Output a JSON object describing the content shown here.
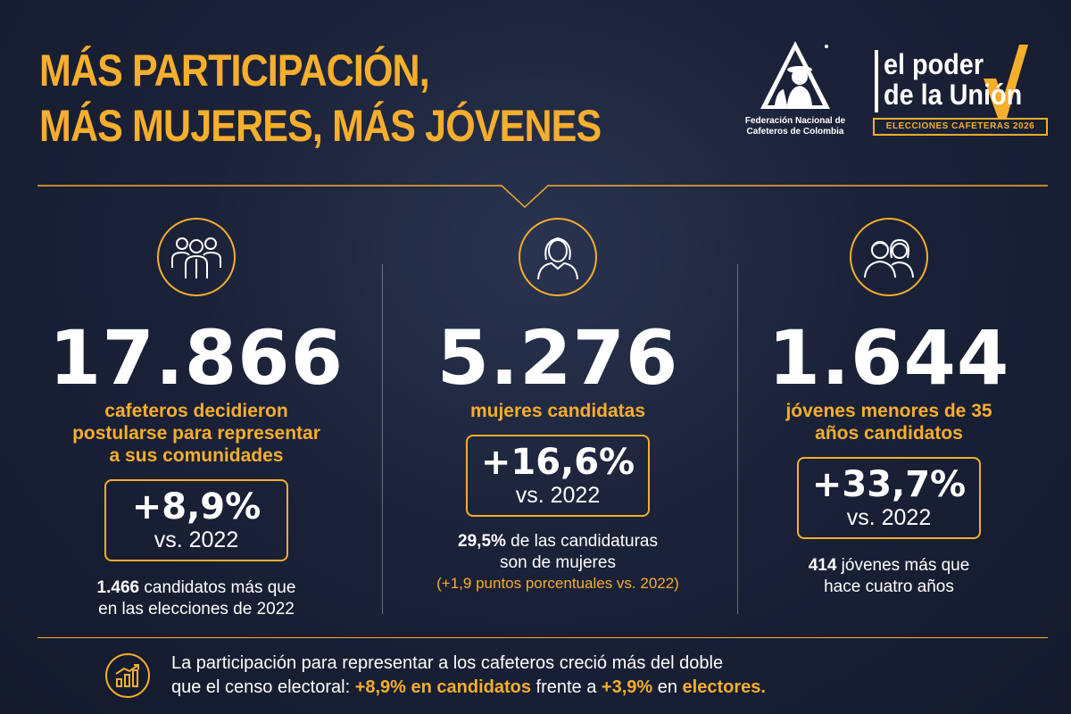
{
  "header": {
    "title_line1": "MÁS PARTICIPACIÓN,",
    "title_line2": "MÁS MUJERES, MÁS JÓVENES",
    "fnc_line1": "Federación Nacional de",
    "fnc_line2": "Cafeteros de Colombia",
    "campaign_line1": "el poder",
    "campaign_line2": "de la Unión",
    "campaign_badge": "ELECCIONES CAFETERAS 2026"
  },
  "columns": [
    {
      "icon": "group-icon",
      "number": "17.866",
      "desc_lines": [
        "cafeteros decidieron",
        "postularse para representar",
        "a sus comunidades"
      ],
      "pct": "+8,9%",
      "vs": "vs. 2022",
      "note_bold": "1.466",
      "note_line1_rest": " candidatos más que",
      "note_line2": "en las elecciones de 2022"
    },
    {
      "icon": "woman-icon",
      "number": "5.276",
      "desc_lines": [
        "mujeres candidatas"
      ],
      "pct": "+16,6%",
      "vs": "vs. 2022",
      "note_bold": "29,5%",
      "note_line1_rest": "  de las candidaturas",
      "note_line2": "son de mujeres",
      "note_line3": "(+1,9 puntos porcentuales vs. 2022)"
    },
    {
      "icon": "youth-icon",
      "number": "1.644",
      "desc_lines": [
        "jóvenes menores de 35",
        "años candidatos"
      ],
      "pct": "+33,7%",
      "vs": "vs. 2022",
      "note_bold": "414",
      "note_line1_rest": " jóvenes más que",
      "note_line2": "hace cuatro años"
    }
  ],
  "footer": {
    "line1": "La participación para representar a los cafeteros creció más del doble",
    "line2_a": "que el censo electoral: ",
    "line2_b": "+8,9% en candidatos",
    "line2_c": " frente a ",
    "line2_d": "+3,9%",
    "line2_e": " en ",
    "line2_f": "electores."
  },
  "colors": {
    "accent": "#f6ae2d",
    "background": "#1b2238",
    "text": "#ffffff"
  }
}
